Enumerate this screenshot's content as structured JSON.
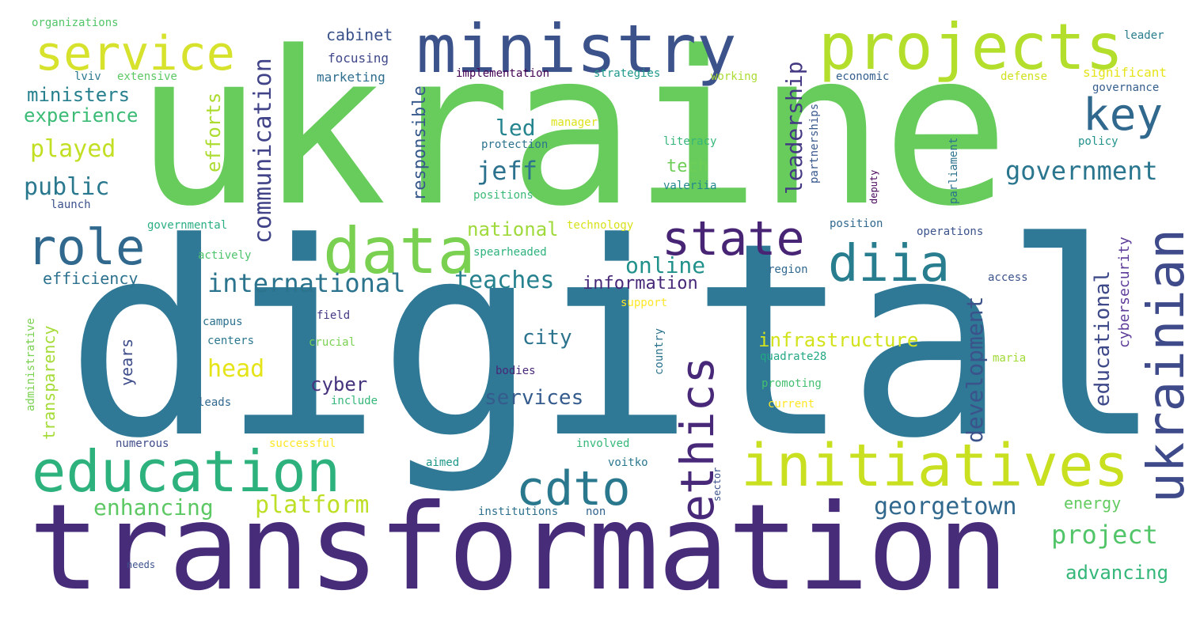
{
  "words": [
    {
      "text": "digital",
      "color": "#2f7896"
    },
    {
      "text": "ukraine",
      "color": "#67cc5c"
    },
    {
      "text": "transformation",
      "color": "#472c7a"
    },
    {
      "text": "ministry",
      "color": "#3b528b"
    },
    {
      "text": "projects",
      "color": "#b4de2c"
    },
    {
      "text": "service",
      "color": "#d6e22b"
    },
    {
      "text": "data",
      "color": "#7ad151"
    },
    {
      "text": "education",
      "color": "#2db27d"
    },
    {
      "text": "initiatives",
      "color": "#c8e020"
    },
    {
      "text": "state",
      "color": "#482475"
    },
    {
      "text": "role",
      "color": "#31688e"
    },
    {
      "text": "diia",
      "color": "#287d8e"
    },
    {
      "text": "cdto",
      "color": "#2a788e"
    },
    {
      "text": "ethics",
      "color": "#482878"
    },
    {
      "text": "ukrainian",
      "color": "#3e4a89"
    },
    {
      "text": "key",
      "color": "#31688e"
    },
    {
      "text": "government",
      "color": "#2a768e"
    },
    {
      "text": "communication",
      "color": "#404387"
    },
    {
      "text": "leadership",
      "color": "#443983"
    },
    {
      "text": "international",
      "color": "#2c738e"
    },
    {
      "text": "teaches",
      "color": "#26828e"
    },
    {
      "text": "online",
      "color": "#21918c"
    },
    {
      "text": "jeff",
      "color": "#2c728e"
    },
    {
      "text": "led",
      "color": "#25858e"
    },
    {
      "text": "public",
      "color": "#2a788e"
    },
    {
      "text": "played",
      "color": "#c2df23"
    },
    {
      "text": "ministers",
      "color": "#27808e"
    },
    {
      "text": "experience",
      "color": "#3bbb75"
    },
    {
      "text": "efficiency",
      "color": "#2c728e"
    },
    {
      "text": "enhancing",
      "color": "#5cc863"
    },
    {
      "text": "platform",
      "color": "#bddf26"
    },
    {
      "text": "georgetown",
      "color": "#31688e"
    },
    {
      "text": "project",
      "color": "#52c569"
    },
    {
      "text": "advancing",
      "color": "#35b779"
    },
    {
      "text": "energy",
      "color": "#63cb5f"
    },
    {
      "text": "development",
      "color": "#3b528b"
    },
    {
      "text": "educational",
      "color": "#3e4989"
    },
    {
      "text": "cybersecurity",
      "color": "#5e3c99"
    },
    {
      "text": "national",
      "color": "#9fda3a"
    },
    {
      "text": "information",
      "color": "#482979"
    },
    {
      "text": "infrastructure",
      "color": "#d2e21b"
    },
    {
      "text": "city",
      "color": "#2c738e"
    },
    {
      "text": "head",
      "color": "#e5e419"
    },
    {
      "text": "cyber",
      "color": "#46337e"
    },
    {
      "text": "services",
      "color": "#365c8d"
    },
    {
      "text": "tech",
      "color": "#6ece58"
    },
    {
      "text": "transparency",
      "color": "#a5db36"
    },
    {
      "text": "years",
      "color": "#3e4c8a"
    },
    {
      "text": "efforts",
      "color": "#addc30"
    },
    {
      "text": "responsible",
      "color": "#38598c"
    },
    {
      "text": "cabinet",
      "color": "#3b528b"
    },
    {
      "text": "focusing",
      "color": "#3f4889"
    },
    {
      "text": "marketing",
      "color": "#2e6e8e"
    },
    {
      "text": "implementation",
      "color": "#440154"
    },
    {
      "text": "strategies",
      "color": "#1f998a"
    },
    {
      "text": "working",
      "color": "#aadc32"
    },
    {
      "text": "economic",
      "color": "#355f8d"
    },
    {
      "text": "significant",
      "color": "#e5e419"
    },
    {
      "text": "defense",
      "color": "#d0e11c"
    },
    {
      "text": "governance",
      "color": "#355e8d"
    },
    {
      "text": "leader",
      "color": "#287c8e"
    },
    {
      "text": "organizations",
      "color": "#52c569"
    },
    {
      "text": "lviv",
      "color": "#2a788e"
    },
    {
      "text": "extensive",
      "color": "#5dc863"
    },
    {
      "text": "manager",
      "color": "#dde318"
    },
    {
      "text": "protection",
      "color": "#2c738e"
    },
    {
      "text": "literacy",
      "color": "#34b679"
    },
    {
      "text": "positions",
      "color": "#3aba76"
    },
    {
      "text": "valeriia",
      "color": "#23888e"
    },
    {
      "text": "partnerships",
      "color": "#38588c"
    },
    {
      "text": "deputy",
      "color": "#450559"
    },
    {
      "text": "parliament",
      "color": "#2c728e"
    },
    {
      "text": "policy",
      "color": "#21918c"
    },
    {
      "text": "launch",
      "color": "#3b528b"
    },
    {
      "text": "governmental",
      "color": "#29af7f"
    },
    {
      "text": "technology",
      "color": "#d8e219"
    },
    {
      "text": "position",
      "color": "#31688e"
    },
    {
      "text": "operations",
      "color": "#3b528b"
    },
    {
      "text": "actively",
      "color": "#4ec36b"
    },
    {
      "text": "spearheaded",
      "color": "#2db27d"
    },
    {
      "text": "region",
      "color": "#31688e"
    },
    {
      "text": "access",
      "color": "#3b528b"
    },
    {
      "text": "support",
      "color": "#fde725"
    },
    {
      "text": "administrative",
      "color": "#7ad151"
    },
    {
      "text": "campus",
      "color": "#2c728e"
    },
    {
      "text": "field",
      "color": "#443983"
    },
    {
      "text": "centers",
      "color": "#2a778e"
    },
    {
      "text": "crucial",
      "color": "#7ad151"
    },
    {
      "text": "country",
      "color": "#2c738e"
    },
    {
      "text": "quadrate28",
      "color": "#22a884"
    },
    {
      "text": "maria",
      "color": "#a2da37"
    },
    {
      "text": "bodies",
      "color": "#482878"
    },
    {
      "text": "promoting",
      "color": "#44bf70"
    },
    {
      "text": "leads",
      "color": "#31688e"
    },
    {
      "text": "include",
      "color": "#35b779"
    },
    {
      "text": "current",
      "color": "#fde725"
    },
    {
      "text": "numerous",
      "color": "#3e4c8a"
    },
    {
      "text": "successful",
      "color": "#fde725"
    },
    {
      "text": "involved",
      "color": "#35b779"
    },
    {
      "text": "voitko",
      "color": "#2a768e"
    },
    {
      "text": "aimed",
      "color": "#1f988b"
    },
    {
      "text": "sector",
      "color": "#3b528b"
    },
    {
      "text": "institutions",
      "color": "#2d708e"
    },
    {
      "text": "non",
      "color": "#33638d"
    },
    {
      "text": "needs",
      "color": "#3b528b"
    }
  ]
}
